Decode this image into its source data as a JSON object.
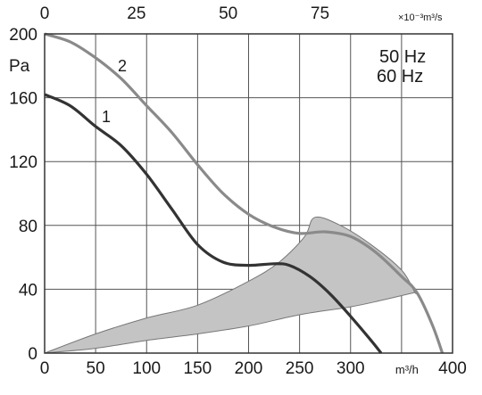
{
  "chart_data": {
    "type": "line",
    "x_label": "m³/h",
    "y_label": "Pa",
    "x2_label": "×10⁻³m³/s",
    "xlim": [
      0,
      400
    ],
    "ylim": [
      0,
      200
    ],
    "x_ticks": [
      0,
      50,
      100,
      150,
      200,
      250,
      300,
      350,
      400
    ],
    "x_tick_labels": [
      "0",
      "50",
      "100",
      "150",
      "200",
      "250",
      "300",
      "m³/h",
      "400"
    ],
    "x2_ticks": [
      0,
      25,
      50,
      75
    ],
    "y_ticks": [
      0,
      40,
      80,
      120,
      160,
      200
    ],
    "legend": [
      "50 Hz",
      "60 Hz"
    ],
    "colors": {
      "series_1": "#333333",
      "series_2": "#8a8a8a",
      "region": "#c4c4c4",
      "grid": "#555555"
    },
    "series": [
      {
        "name": "1",
        "x": [
          0,
          25,
          50,
          75,
          100,
          125,
          150,
          175,
          200,
          225,
          240,
          260,
          280,
          300,
          320,
          330
        ],
        "y": [
          162,
          155,
          142,
          130,
          112,
          90,
          68,
          57,
          55,
          56,
          55,
          48,
          37,
          23,
          8,
          0
        ]
      },
      {
        "name": "2",
        "x": [
          0,
          25,
          50,
          75,
          100,
          125,
          150,
          175,
          200,
          225,
          250,
          275,
          300,
          325,
          350,
          365,
          380,
          390
        ],
        "y": [
          200,
          195,
          185,
          172,
          155,
          138,
          118,
          100,
          87,
          79,
          75,
          76,
          73,
          63,
          48,
          38,
          18,
          0
        ]
      }
    ],
    "shaded_region": {
      "x": [
        0,
        50,
        100,
        150,
        200,
        230,
        255,
        265,
        290,
        320,
        350,
        363,
        363,
        330,
        300,
        250,
        200,
        150,
        100,
        50,
        0
      ],
      "y": [
        0,
        12,
        22,
        30,
        45,
        57,
        73,
        85,
        80,
        68,
        52,
        38,
        38,
        33,
        29,
        24,
        17,
        12,
        8,
        3,
        0
      ]
    }
  }
}
